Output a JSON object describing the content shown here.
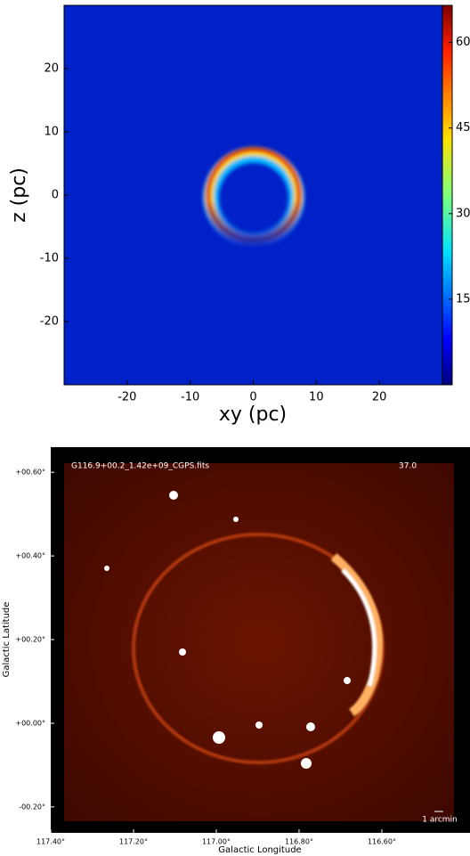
{
  "chart_data": [
    {
      "type": "heatmap",
      "xlabel": "xy (pc)",
      "ylabel": "z (pc)",
      "xlim": [
        -30,
        30
      ],
      "ylim": [
        -30,
        30
      ],
      "xticks": [
        -20,
        -10,
        0,
        10,
        20
      ],
      "yticks": [
        -20,
        -10,
        0,
        10,
        20
      ],
      "clim": [
        0,
        66.5
      ],
      "cticks": [
        15,
        30,
        45,
        60
      ],
      "colormap": "jet"
    },
    {
      "type": "image",
      "title": "G116.9+00.2_1.42e+09_CGPS.fits",
      "annotation": "37.0",
      "scalebar": "1 arcmin",
      "xlabel": "Galactic Longitude",
      "ylabel": "Galactic Latitude",
      "xlim": [
        117.4,
        116.387
      ],
      "ylim": [
        -0.262,
        0.66
      ],
      "xticks": [
        {
          "value": 117.4,
          "label": "117.40°"
        },
        {
          "value": 117.2,
          "label": "117.20°"
        },
        {
          "value": 117.0,
          "label": "117.00°"
        },
        {
          "value": 116.8,
          "label": "116.80°"
        },
        {
          "value": 116.6,
          "label": "116.60°"
        }
      ],
      "yticks": [
        {
          "value": 0.6,
          "label": "+00.60°"
        },
        {
          "value": 0.4,
          "label": "+00.40°"
        },
        {
          "value": 0.2,
          "label": "+00.20°"
        },
        {
          "value": 0.0,
          "label": "+00.00°"
        },
        {
          "value": -0.2,
          "label": "-00.20°"
        }
      ]
    }
  ]
}
